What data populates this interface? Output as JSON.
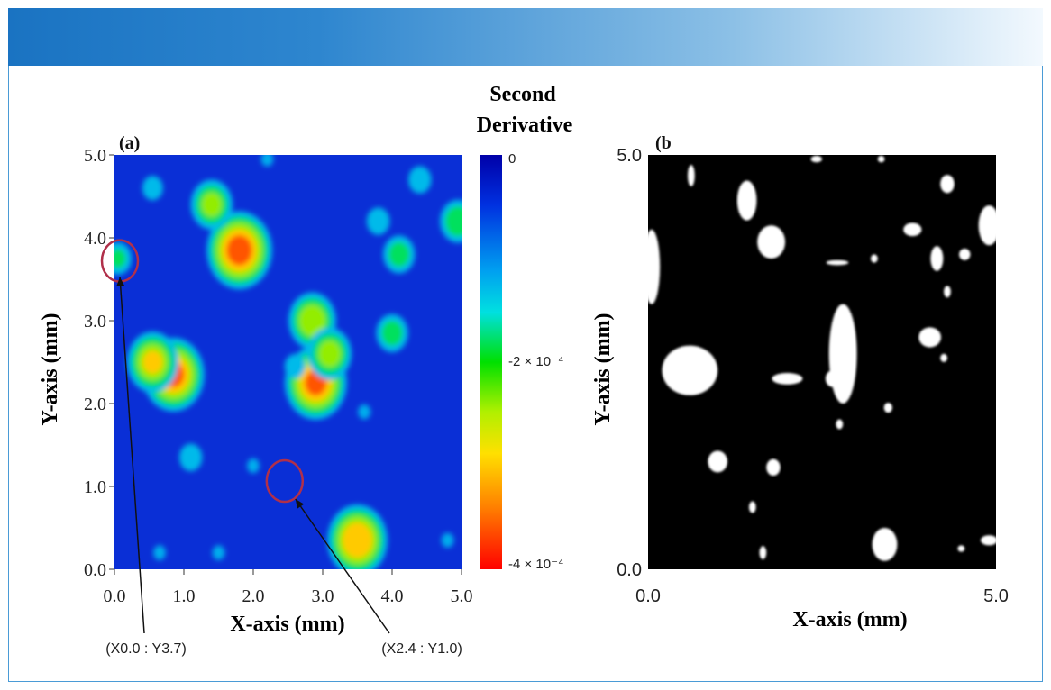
{
  "chart_data": [
    {
      "panel_label": "(a)",
      "type": "heatmap",
      "xlabel": "X-axis (mm)",
      "ylabel": "Y-axis (mm)",
      "xlim": [
        0.0,
        5.0
      ],
      "ylim": [
        0.0,
        5.0
      ],
      "x_ticks": [
        "0.0",
        "1.0",
        "2.0",
        "3.0",
        "4.0",
        "5.0"
      ],
      "y_ticks": [
        "0.0",
        "1.0",
        "2.0",
        "3.0",
        "4.0",
        "5.0"
      ],
      "colorbar": {
        "title_line1": "Second",
        "title_line2": "Derivative",
        "range": [
          0,
          -0.0004
        ],
        "ticks": [
          {
            "value": 0,
            "label": "0"
          },
          {
            "value": -0.0002,
            "label": "-2 × 10⁻⁴"
          },
          {
            "value": -0.0004,
            "label": "-4 × 10⁻⁴"
          }
        ]
      },
      "annotations": [
        {
          "text": "(X0.0 : Y3.7)",
          "x": 0.0,
          "y": 3.7
        },
        {
          "text": "(X2.4 : Y1.0)",
          "x": 2.4,
          "y": 1.0
        }
      ],
      "hotspots": [
        {
          "x": 1.8,
          "y": 3.85,
          "value": -0.00038
        },
        {
          "x": 0.85,
          "y": 2.35,
          "value": -0.00036
        },
        {
          "x": 0.55,
          "y": 2.5,
          "value": -0.0003
        },
        {
          "x": 2.9,
          "y": 2.25,
          "value": -0.00036
        },
        {
          "x": 2.85,
          "y": 3.0,
          "value": -0.00028
        },
        {
          "x": 3.1,
          "y": 2.6,
          "value": -0.00026
        },
        {
          "x": 3.5,
          "y": 0.35,
          "value": -0.00035
        },
        {
          "x": 1.4,
          "y": 4.4,
          "value": -0.00025
        },
        {
          "x": 4.0,
          "y": 2.85,
          "value": -0.0002
        },
        {
          "x": 4.1,
          "y": 3.8,
          "value": -0.0002
        },
        {
          "x": 4.95,
          "y": 4.2,
          "value": -0.00022
        },
        {
          "x": 0.05,
          "y": 3.75,
          "value": -0.00018
        },
        {
          "x": 3.8,
          "y": 4.2,
          "value": -0.00016
        },
        {
          "x": 4.4,
          "y": 4.7,
          "value": -0.00016
        },
        {
          "x": 0.55,
          "y": 4.6,
          "value": -0.00015
        },
        {
          "x": 1.1,
          "y": 1.35,
          "value": -0.00016
        },
        {
          "x": 0.65,
          "y": 0.2,
          "value": -0.00012
        },
        {
          "x": 1.5,
          "y": 0.2,
          "value": -0.00012
        },
        {
          "x": 2.0,
          "y": 1.25,
          "value": -0.00012
        },
        {
          "x": 4.8,
          "y": 0.35,
          "value": -0.00012
        },
        {
          "x": 2.6,
          "y": 2.45,
          "value": -0.00015
        },
        {
          "x": 3.6,
          "y": 1.9,
          "value": -0.00012
        },
        {
          "x": 2.2,
          "y": 4.95,
          "value": -0.00012
        }
      ]
    },
    {
      "panel_label": "(b",
      "type": "heatmap",
      "xlabel": "X-axis (mm)",
      "ylabel": "Y-axis (mm)",
      "xlim": [
        0.0,
        5.0
      ],
      "ylim": [
        0.0,
        5.0
      ],
      "x_ticks": [
        "0.0",
        "5.0"
      ],
      "y_ticks": [
        "0.0",
        "5.0"
      ],
      "binary_regions": [
        {
          "x": 0.05,
          "y": 3.65,
          "rx": 0.12,
          "ry": 0.45
        },
        {
          "x": 0.62,
          "y": 4.75,
          "rx": 0.05,
          "ry": 0.13
        },
        {
          "x": 1.42,
          "y": 4.45,
          "rx": 0.14,
          "ry": 0.24
        },
        {
          "x": 1.77,
          "y": 3.95,
          "rx": 0.2,
          "ry": 0.2
        },
        {
          "x": 2.42,
          "y": 4.95,
          "rx": 0.08,
          "ry": 0.04
        },
        {
          "x": 2.72,
          "y": 3.7,
          "rx": 0.16,
          "ry": 0.03
        },
        {
          "x": 3.35,
          "y": 4.95,
          "rx": 0.05,
          "ry": 0.04
        },
        {
          "x": 4.3,
          "y": 4.65,
          "rx": 0.1,
          "ry": 0.11
        },
        {
          "x": 3.8,
          "y": 4.1,
          "rx": 0.13,
          "ry": 0.08
        },
        {
          "x": 4.9,
          "y": 4.15,
          "rx": 0.15,
          "ry": 0.24
        },
        {
          "x": 4.55,
          "y": 3.8,
          "rx": 0.08,
          "ry": 0.07
        },
        {
          "x": 4.15,
          "y": 3.75,
          "rx": 0.09,
          "ry": 0.15
        },
        {
          "x": 3.25,
          "y": 3.75,
          "rx": 0.05,
          "ry": 0.05
        },
        {
          "x": 4.3,
          "y": 3.35,
          "rx": 0.05,
          "ry": 0.07
        },
        {
          "x": 2.8,
          "y": 2.6,
          "rx": 0.2,
          "ry": 0.6
        },
        {
          "x": 0.6,
          "y": 2.4,
          "rx": 0.4,
          "ry": 0.3
        },
        {
          "x": 2.0,
          "y": 2.3,
          "rx": 0.22,
          "ry": 0.07
        },
        {
          "x": 2.65,
          "y": 2.3,
          "rx": 0.1,
          "ry": 0.1
        },
        {
          "x": 2.75,
          "y": 2.1,
          "rx": 0.04,
          "ry": 0.06
        },
        {
          "x": 4.05,
          "y": 2.8,
          "rx": 0.16,
          "ry": 0.12
        },
        {
          "x": 4.25,
          "y": 2.55,
          "rx": 0.05,
          "ry": 0.05
        },
        {
          "x": 2.75,
          "y": 1.75,
          "rx": 0.05,
          "ry": 0.06
        },
        {
          "x": 3.45,
          "y": 1.95,
          "rx": 0.06,
          "ry": 0.06
        },
        {
          "x": 1.0,
          "y": 1.3,
          "rx": 0.14,
          "ry": 0.13
        },
        {
          "x": 1.8,
          "y": 1.23,
          "rx": 0.1,
          "ry": 0.1
        },
        {
          "x": 1.5,
          "y": 0.75,
          "rx": 0.05,
          "ry": 0.07
        },
        {
          "x": 3.4,
          "y": 0.3,
          "rx": 0.18,
          "ry": 0.2
        },
        {
          "x": 1.65,
          "y": 0.2,
          "rx": 0.05,
          "ry": 0.08
        },
        {
          "x": 4.9,
          "y": 0.35,
          "rx": 0.12,
          "ry": 0.06
        },
        {
          "x": 4.5,
          "y": 0.25,
          "rx": 0.05,
          "ry": 0.04
        }
      ]
    }
  ]
}
